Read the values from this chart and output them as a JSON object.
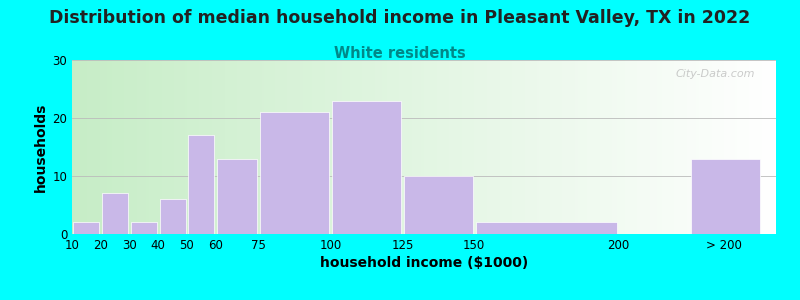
{
  "title": "Distribution of median household income in Pleasant Valley, TX in 2022",
  "subtitle": "White residents",
  "xlabel": "household income ($1000)",
  "ylabel": "households",
  "bar_edges": [
    10,
    20,
    30,
    40,
    50,
    60,
    75,
    100,
    125,
    150,
    200,
    225,
    250
  ],
  "bar_heights": [
    2,
    7,
    2,
    6,
    17,
    13,
    21,
    23,
    10,
    2,
    0,
    13
  ],
  "bar_color": "#C9B8E8",
  "bar_edgecolor": "#FFFFFF",
  "ylim": [
    0,
    30
  ],
  "yticks": [
    0,
    10,
    20,
    30
  ],
  "xtick_positions": [
    10,
    20,
    30,
    40,
    50,
    60,
    75,
    100,
    125,
    150,
    200
  ],
  "xtick_labels": [
    "10",
    "20",
    "30",
    "40",
    "50",
    "60",
    "75",
    "100",
    "125",
    "150",
    "200"
  ],
  "xlim": [
    10,
    255
  ],
  "bg_color": "#00FFFF",
  "title_fontsize": 12.5,
  "subtitle_color": "#008888",
  "subtitle_fontsize": 10.5,
  "axis_label_fontsize": 10,
  "tick_fontsize": 8.5,
  "watermark": "City-Data.com"
}
